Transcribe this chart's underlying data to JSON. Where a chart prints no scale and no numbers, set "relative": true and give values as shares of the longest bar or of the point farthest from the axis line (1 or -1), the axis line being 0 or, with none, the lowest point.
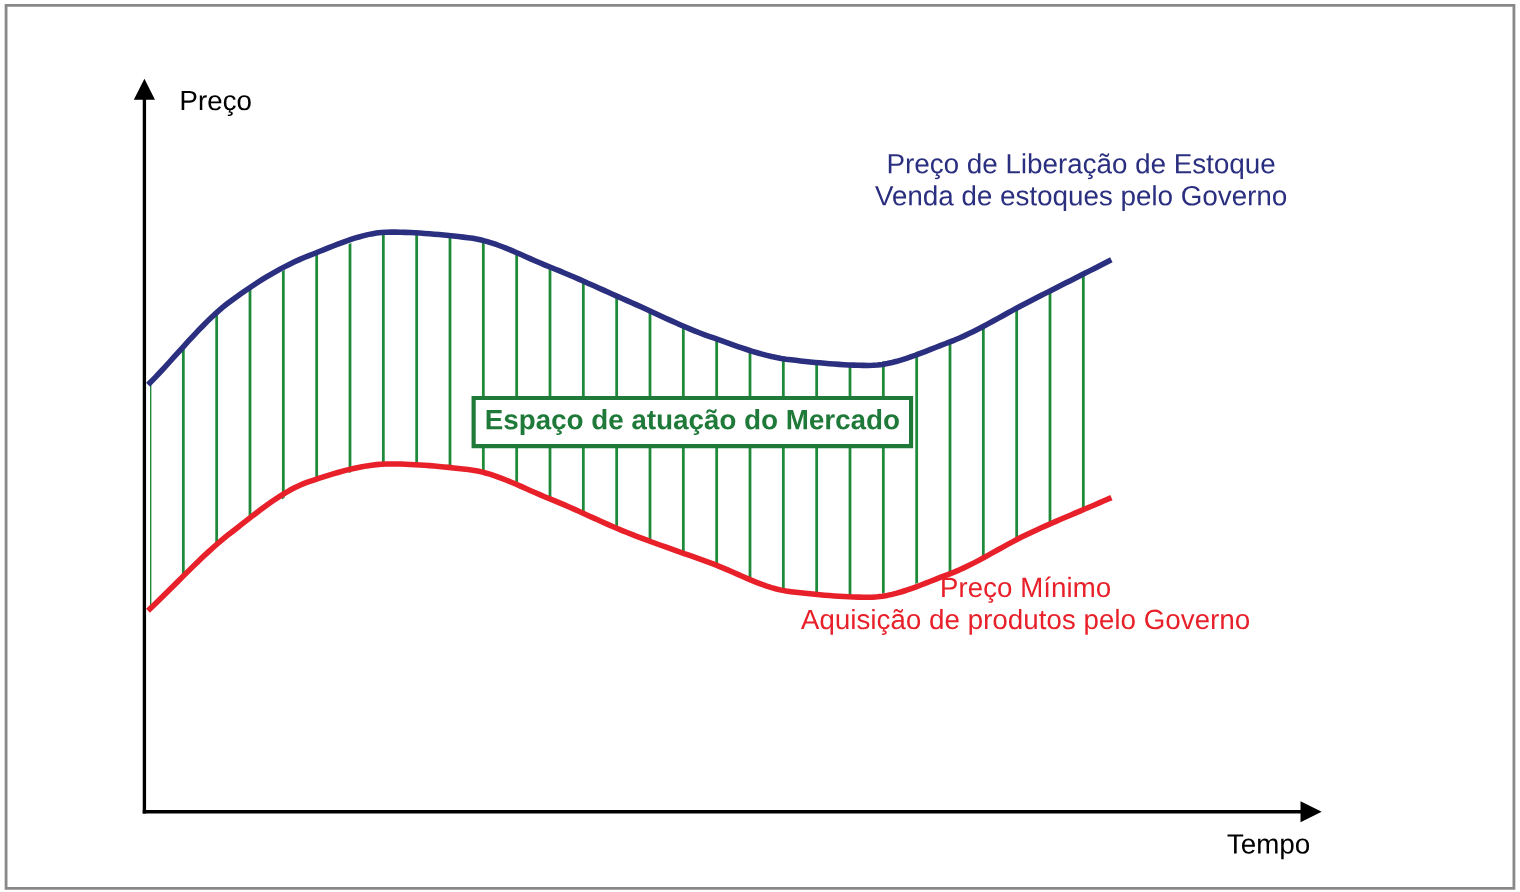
{
  "chart_data": {
    "type": "line",
    "relative": true,
    "xlabel": "Tempo",
    "ylabel": "Preço",
    "categories": [
      null,
      null,
      null,
      null,
      null,
      null,
      null,
      null,
      null,
      null,
      null,
      null,
      null
    ],
    "series": [
      {
        "name": "Preço de Liberação de Estoque\nVenda de estoques pelo Governo",
        "color": "#2b2f7f",
        "values": [
          0.74,
          0.88,
          0.96,
          1,
          0.99,
          0.94,
          0.88,
          0.82,
          0.78,
          0.77,
          0.81,
          0.88,
          0.95
        ],
        "lower": [
          0.35,
          0.48,
          0.57,
          0.6,
          0.59,
          0.54,
          0.48,
          0.43,
          0.38,
          0.37,
          0.41,
          0.48,
          0.54
        ],
        "upper": [
          0.74,
          0.88,
          0.96,
          1,
          0.99,
          0.94,
          0.88,
          0.82,
          0.78,
          0.77,
          0.81,
          0.88,
          0.95
        ]
      },
      {
        "name": "Preço Mínimo\nAquisição de produtos pelo Governo",
        "color": "#e8202a",
        "values": [
          0.35,
          0.48,
          0.57,
          0.6,
          0.59,
          0.54,
          0.48,
          0.43,
          0.38,
          0.37,
          0.41,
          0.48,
          0.54
        ]
      }
    ],
    "annotations": [
      "Espaço de atuação do Mercado"
    ],
    "tick_labels": false,
    "legend": false,
    "marker": "none",
    "line_style": "solid"
  }
}
